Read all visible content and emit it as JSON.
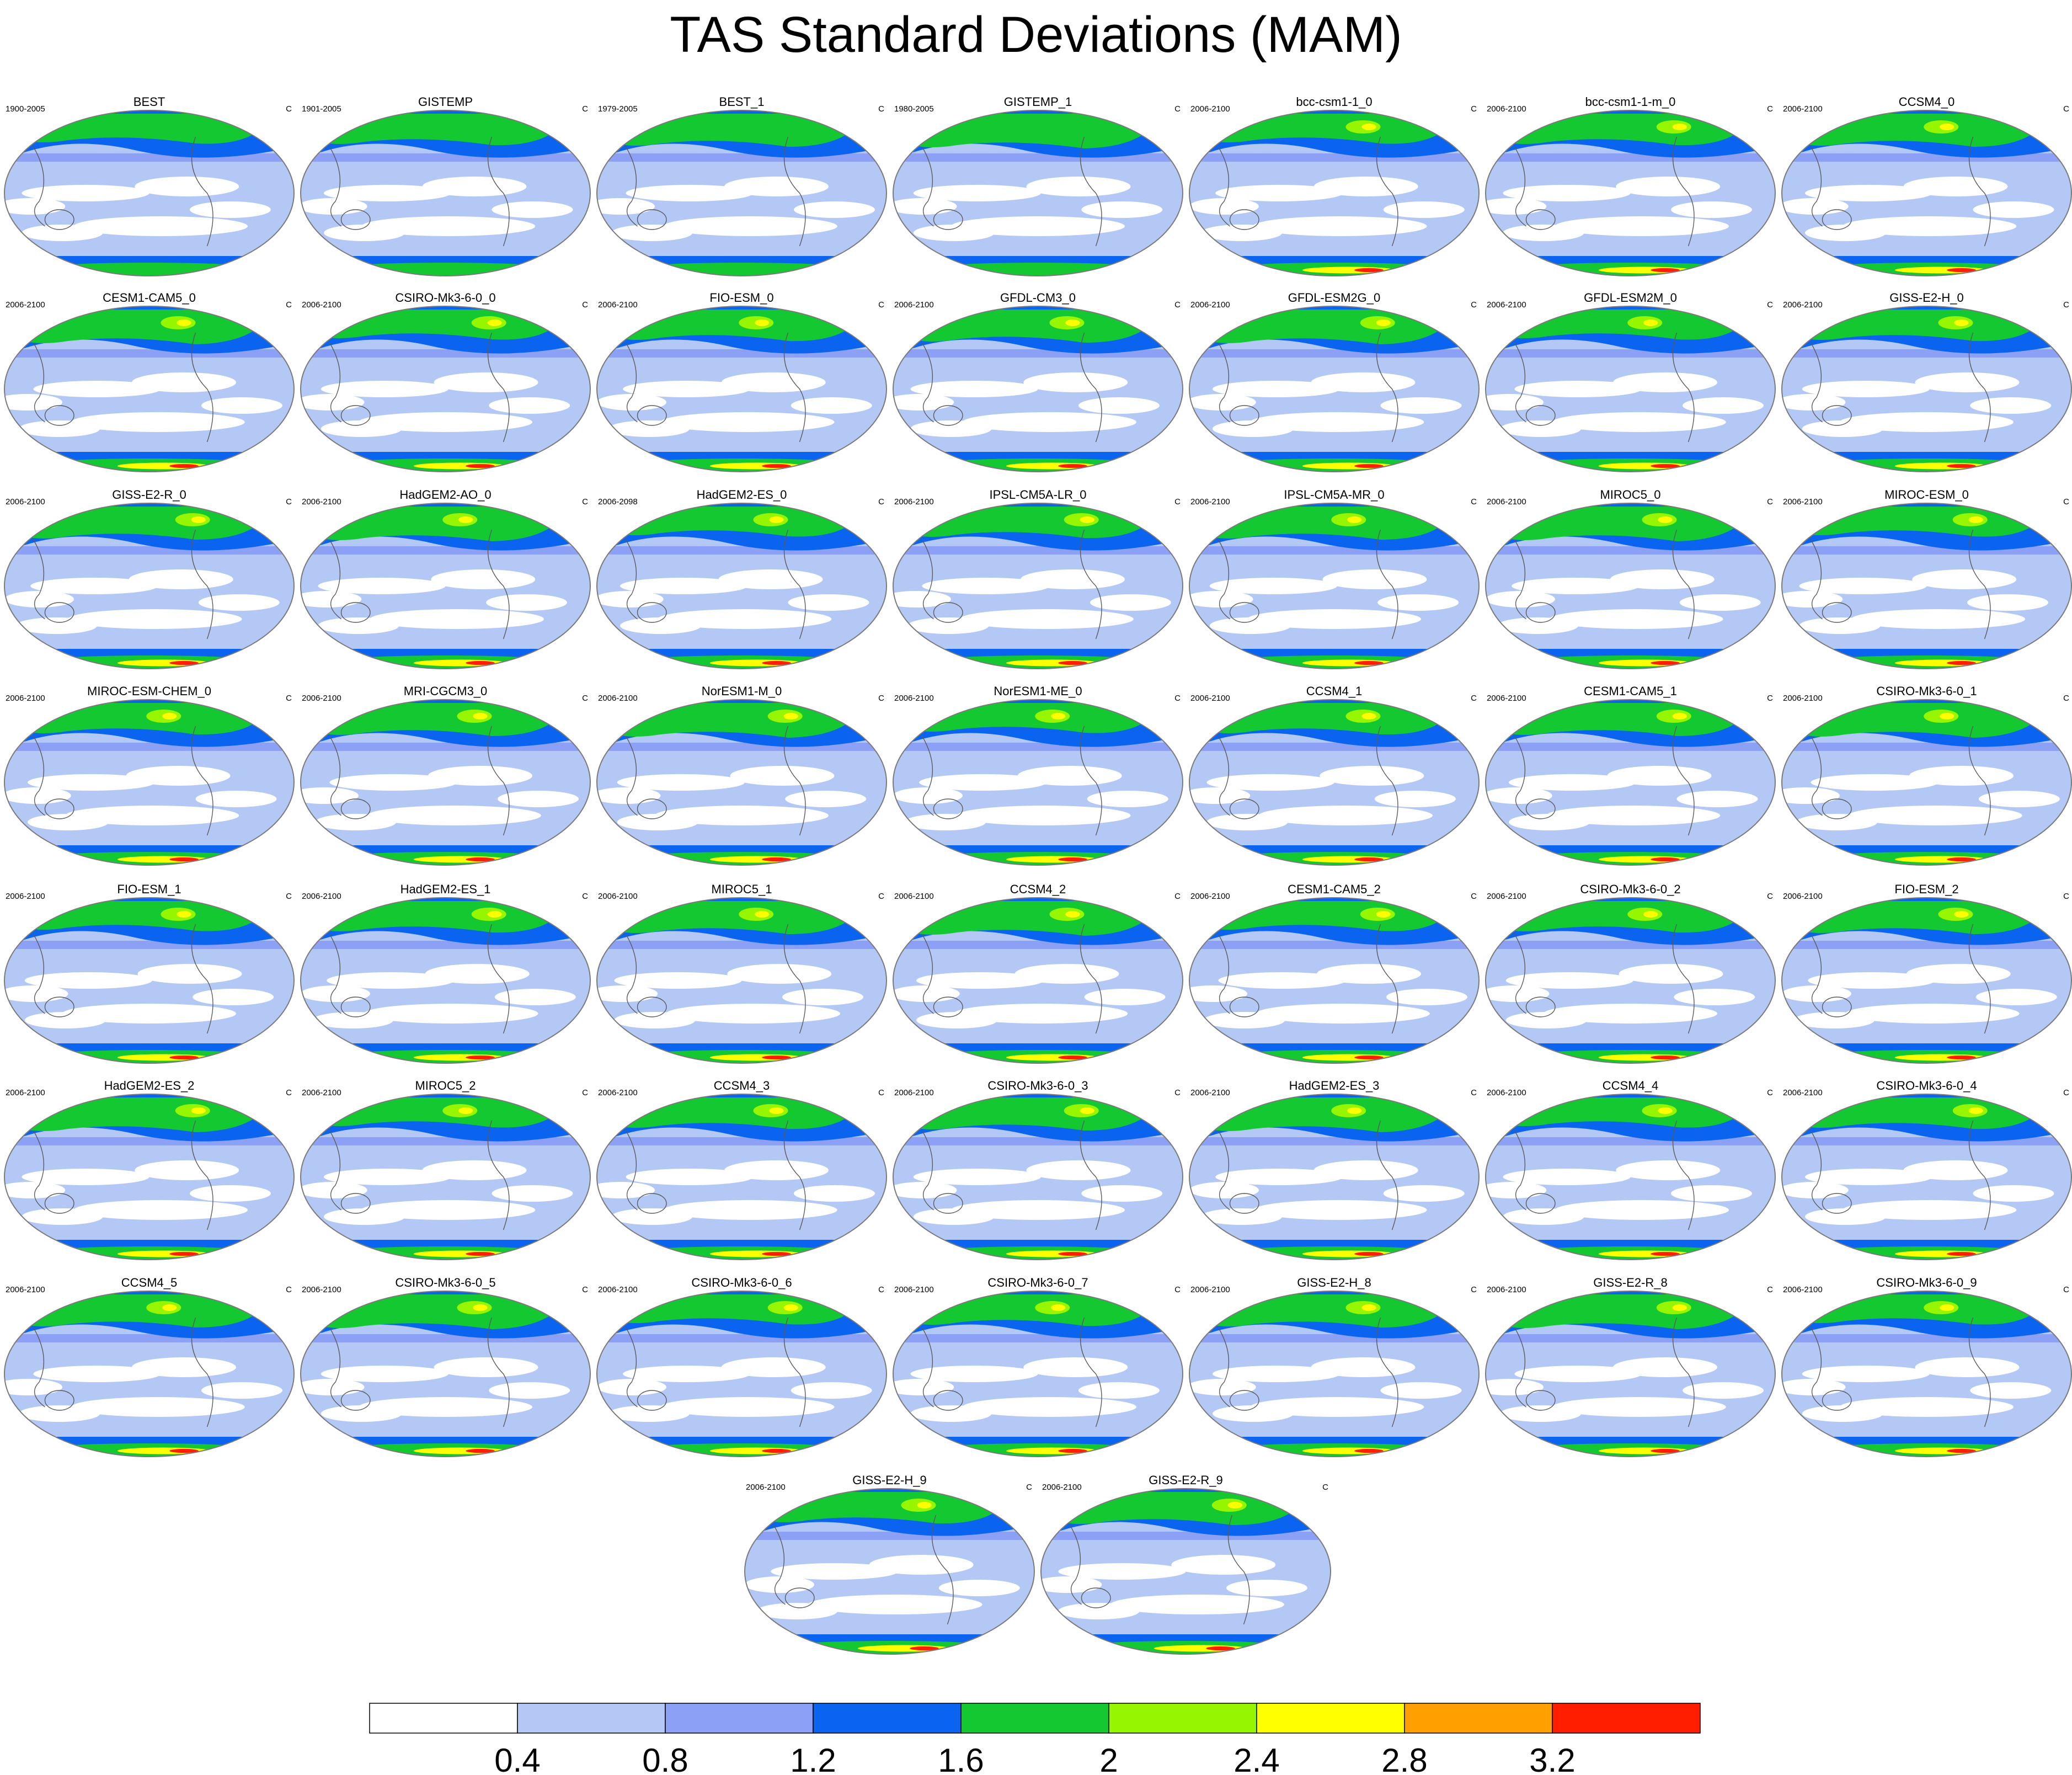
{
  "title": "TAS Standard Deviations (MAM)",
  "units": "C",
  "palette": {
    "ocean_low": "#ffffff",
    "band_0_4_0_8": "#b4c8f5",
    "band_0_8_1_2": "#8ca0f5",
    "band_1_2_1_6": "#0a64f0",
    "band_1_6_2": "#14c832",
    "band_2_2_4": "#96f500",
    "band_2_4_2_8": "#ffff00",
    "band_2_8_3_2": "#ffa000",
    "band_3_2_up": "#ff1e00",
    "coast": "#5a5a5a"
  },
  "panels": [
    {
      "name": "BEST",
      "period": "1900-2005"
    },
    {
      "name": "GISTEMP",
      "period": "1901-2005"
    },
    {
      "name": "BEST_1",
      "period": "1979-2005"
    },
    {
      "name": "GISTEMP_1",
      "period": "1980-2005"
    },
    {
      "name": "bcc-csm1-1_0",
      "period": "2006-2100"
    },
    {
      "name": "bcc-csm1-1-m_0",
      "period": "2006-2100"
    },
    {
      "name": "CCSM4_0",
      "period": "2006-2100"
    },
    {
      "name": "CESM1-CAM5_0",
      "period": "2006-2100"
    },
    {
      "name": "CSIRO-Mk3-6-0_0",
      "period": "2006-2100"
    },
    {
      "name": "FIO-ESM_0",
      "period": "2006-2100"
    },
    {
      "name": "GFDL-CM3_0",
      "period": "2006-2100"
    },
    {
      "name": "GFDL-ESM2G_0",
      "period": "2006-2100"
    },
    {
      "name": "GFDL-ESM2M_0",
      "period": "2006-2100"
    },
    {
      "name": "GISS-E2-H_0",
      "period": "2006-2100"
    },
    {
      "name": "GISS-E2-R_0",
      "period": "2006-2100"
    },
    {
      "name": "HadGEM2-AO_0",
      "period": "2006-2100"
    },
    {
      "name": "HadGEM2-ES_0",
      "period": "2006-2098"
    },
    {
      "name": "IPSL-CM5A-LR_0",
      "period": "2006-2100"
    },
    {
      "name": "IPSL-CM5A-MR_0",
      "period": "2006-2100"
    },
    {
      "name": "MIROC5_0",
      "period": "2006-2100"
    },
    {
      "name": "MIROC-ESM_0",
      "period": "2006-2100"
    },
    {
      "name": "MIROC-ESM-CHEM_0",
      "period": "2006-2100"
    },
    {
      "name": "MRI-CGCM3_0",
      "period": "2006-2100"
    },
    {
      "name": "NorESM1-M_0",
      "period": "2006-2100"
    },
    {
      "name": "NorESM1-ME_0",
      "period": "2006-2100"
    },
    {
      "name": "CCSM4_1",
      "period": "2006-2100"
    },
    {
      "name": "CESM1-CAM5_1",
      "period": "2006-2100"
    },
    {
      "name": "CSIRO-Mk3-6-0_1",
      "period": "2006-2100"
    },
    {
      "name": "FIO-ESM_1",
      "period": "2006-2100"
    },
    {
      "name": "HadGEM2-ES_1",
      "period": "2006-2100"
    },
    {
      "name": "MIROC5_1",
      "period": "2006-2100"
    },
    {
      "name": "CCSM4_2",
      "period": "2006-2100"
    },
    {
      "name": "CESM1-CAM5_2",
      "period": "2006-2100"
    },
    {
      "name": "CSIRO-Mk3-6-0_2",
      "period": "2006-2100"
    },
    {
      "name": "FIO-ESM_2",
      "period": "2006-2100"
    },
    {
      "name": "HadGEM2-ES_2",
      "period": "2006-2100"
    },
    {
      "name": "MIROC5_2",
      "period": "2006-2100"
    },
    {
      "name": "CCSM4_3",
      "period": "2006-2100"
    },
    {
      "name": "CSIRO-Mk3-6-0_3",
      "period": "2006-2100"
    },
    {
      "name": "HadGEM2-ES_3",
      "period": "2006-2100"
    },
    {
      "name": "CCSM4_4",
      "period": "2006-2100"
    },
    {
      "name": "CSIRO-Mk3-6-0_4",
      "period": "2006-2100"
    },
    {
      "name": "CCSM4_5",
      "period": "2006-2100"
    },
    {
      "name": "CSIRO-Mk3-6-0_5",
      "period": "2006-2100"
    },
    {
      "name": "CSIRO-Mk3-6-0_6",
      "period": "2006-2100"
    },
    {
      "name": "CSIRO-Mk3-6-0_7",
      "period": "2006-2100"
    },
    {
      "name": "GISS-E2-H_8",
      "period": "2006-2100"
    },
    {
      "name": "GISS-E2-R_8",
      "period": "2006-2100"
    },
    {
      "name": "CSIRO-Mk3-6-0_9",
      "period": "2006-2100"
    },
    {
      "name": "GISS-E2-H_9",
      "period": "2006-2100"
    },
    {
      "name": "GISS-E2-R_9",
      "period": "2006-2100"
    }
  ],
  "colorbar": {
    "ticks": [
      "0.4",
      "0.8",
      "1.2",
      "1.6",
      "2",
      "2.4",
      "2.8",
      "3.2"
    ],
    "colors": [
      "#ffffff",
      "#b4c8f5",
      "#8ca0f5",
      "#0a64f0",
      "#14c832",
      "#96f500",
      "#ffff00",
      "#ffa000",
      "#ff1e00"
    ]
  }
}
